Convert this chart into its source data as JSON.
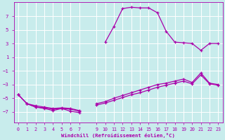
{
  "xlabel": "Windchill (Refroidissement éolien,°C)",
  "bg_color": "#c8ecec",
  "grid_color": "#ffffff",
  "line_color": "#aa00aa",
  "xlim": [
    -0.5,
    23.5
  ],
  "ylim": [
    -8.5,
    9.0
  ],
  "xticks": [
    0,
    1,
    2,
    3,
    4,
    5,
    6,
    7,
    9,
    10,
    11,
    12,
    13,
    14,
    15,
    16,
    17,
    18,
    19,
    20,
    21,
    22,
    23
  ],
  "yticks": [
    -7,
    -5,
    -3,
    -1,
    1,
    3,
    5,
    7
  ],
  "series1_seg1": [
    [
      0,
      -4.5
    ],
    [
      1,
      -5.8
    ],
    [
      2,
      -6.3
    ],
    [
      3,
      -6.5
    ],
    [
      4,
      -6.8
    ],
    [
      5,
      -6.5
    ],
    [
      6,
      -6.9
    ],
    [
      7,
      -7.1
    ]
  ],
  "series1_seg2": [
    [
      10,
      3.2
    ],
    [
      11,
      5.5
    ],
    [
      12,
      8.1
    ],
    [
      13,
      8.3
    ],
    [
      14,
      8.2
    ],
    [
      15,
      8.2
    ],
    [
      16,
      7.5
    ],
    [
      17,
      4.8
    ],
    [
      18,
      3.2
    ],
    [
      19,
      3.1
    ],
    [
      20,
      3.0
    ],
    [
      21,
      2.0
    ],
    [
      22,
      3.0
    ],
    [
      23,
      3.0
    ]
  ],
  "series2_seg1": [
    [
      0,
      -4.5
    ],
    [
      1,
      -5.8
    ],
    [
      2,
      -6.3
    ],
    [
      3,
      -6.4
    ],
    [
      4,
      -6.6
    ],
    [
      5,
      -6.5
    ],
    [
      6,
      -6.6
    ],
    [
      7,
      -6.9
    ]
  ],
  "series2_seg2": [
    [
      9,
      -5.8
    ],
    [
      10,
      -5.5
    ],
    [
      11,
      -5.0
    ],
    [
      12,
      -4.6
    ],
    [
      13,
      -4.2
    ],
    [
      14,
      -3.8
    ],
    [
      15,
      -3.4
    ],
    [
      16,
      -3.0
    ],
    [
      17,
      -2.8
    ],
    [
      18,
      -2.5
    ],
    [
      19,
      -2.2
    ],
    [
      20,
      -2.7
    ],
    [
      21,
      -1.3
    ],
    [
      22,
      -2.8
    ],
    [
      23,
      -3.0
    ]
  ],
  "series3_seg1": [
    [
      0,
      -4.5
    ],
    [
      1,
      -5.8
    ],
    [
      2,
      -6.1
    ],
    [
      3,
      -6.3
    ],
    [
      4,
      -6.5
    ],
    [
      5,
      -6.4
    ],
    [
      6,
      -6.5
    ],
    [
      7,
      -6.8
    ]
  ],
  "series3_seg2": [
    [
      9,
      -6.0
    ],
    [
      10,
      -5.7
    ],
    [
      11,
      -5.3
    ],
    [
      12,
      -4.9
    ],
    [
      13,
      -4.5
    ],
    [
      14,
      -4.2
    ],
    [
      15,
      -3.8
    ],
    [
      16,
      -3.4
    ],
    [
      17,
      -3.1
    ],
    [
      18,
      -2.8
    ],
    [
      19,
      -2.5
    ],
    [
      20,
      -2.9
    ],
    [
      21,
      -1.6
    ],
    [
      22,
      -2.9
    ],
    [
      23,
      -3.1
    ]
  ]
}
